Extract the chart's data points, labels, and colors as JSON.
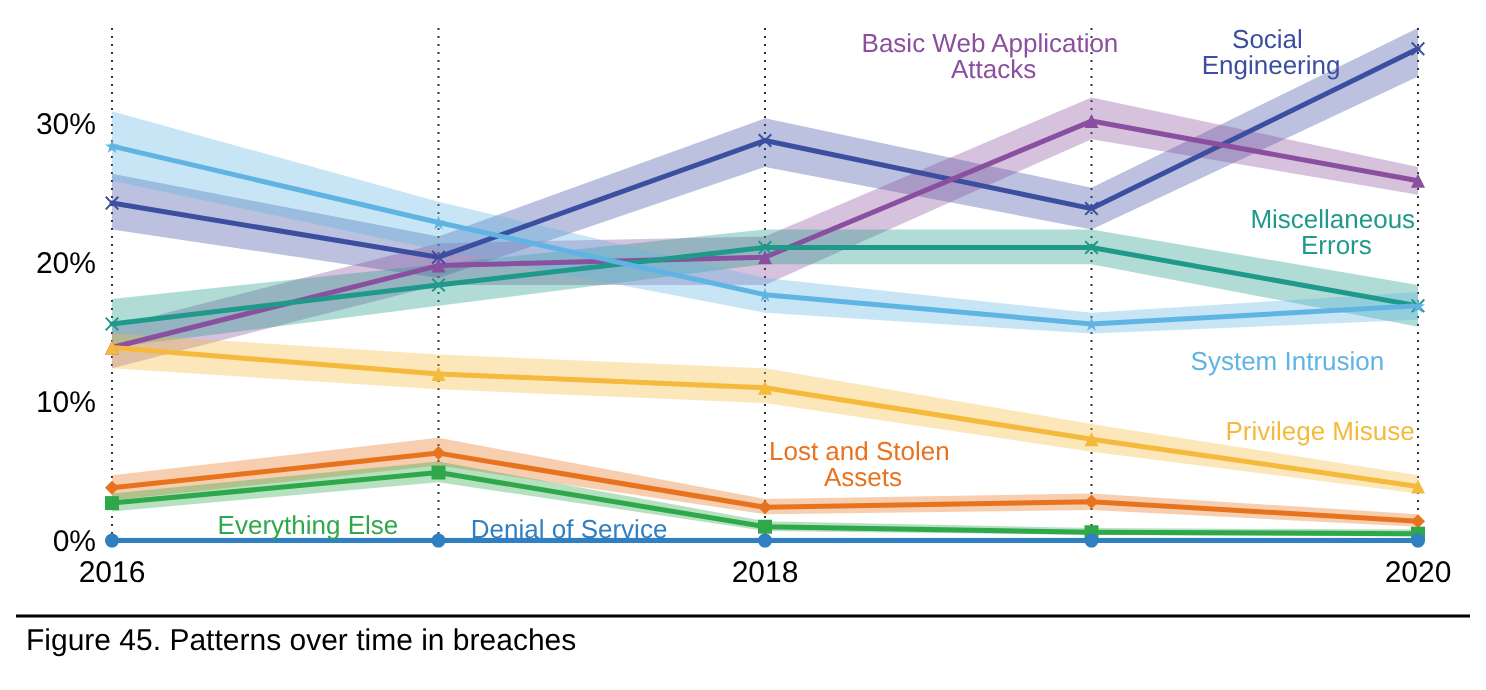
{
  "chart_data": {
    "type": "line",
    "title": "Figure 45. Patterns over time in breaches",
    "x": [
      2016,
      2017,
      2018,
      2019,
      2020
    ],
    "xlim": [
      2016,
      2020
    ],
    "xticks": [
      2016,
      {
        "value": 2017,
        "label": null
      },
      2018,
      {
        "value": 2019,
        "label": null
      },
      2020
    ],
    "ylim": [
      0,
      37
    ],
    "yticks": [
      {
        "value": 0,
        "label": "0%"
      },
      {
        "value": 10,
        "label": "10%"
      },
      {
        "value": 20,
        "label": "20%"
      },
      {
        "value": 30,
        "label": "30%"
      }
    ],
    "grid": "x",
    "legend": false,
    "series": [
      {
        "name": "Social Engineering",
        "color": "#3b4ea0",
        "marker": "cross",
        "values": [
          24.4,
          20.5,
          28.9,
          24,
          35.5
        ],
        "lower": [
          22.5,
          19,
          27,
          22.5,
          33.5
        ],
        "upper": [
          26.5,
          22,
          30.5,
          25.5,
          37
        ]
      },
      {
        "name": "Basic Web Application Attacks",
        "color": "#8a4f9e",
        "marker": "triangle",
        "values": [
          14,
          19.9,
          20.5,
          30.3,
          26
        ],
        "lower": [
          12.5,
          18.5,
          18.5,
          29,
          25
        ],
        "upper": [
          15.5,
          21.5,
          22,
          32,
          27
        ]
      },
      {
        "name": "Miscellaneous Errors",
        "color": "#1f9a8a",
        "marker": "cross",
        "values": [
          15.7,
          18.5,
          21.2,
          21.2,
          17
        ],
        "lower": [
          14,
          17,
          20,
          20,
          15.5
        ],
        "upper": [
          17.5,
          20,
          22.5,
          22.5,
          18.5
        ]
      },
      {
        "name": "System Intrusion",
        "color": "#5fb4e3",
        "marker": "star",
        "values": [
          28.5,
          23,
          17.8,
          15.7,
          17
        ],
        "lower": [
          26,
          21,
          16.5,
          15,
          16
        ],
        "upper": [
          31,
          24.5,
          19,
          16.5,
          18
        ]
      },
      {
        "name": "Privilege Misuse",
        "color": "#f5b93c",
        "marker": "triangle",
        "values": [
          14,
          12.1,
          11.1,
          7.4,
          4
        ],
        "lower": [
          12.5,
          11,
          10,
          6.5,
          3.5
        ],
        "upper": [
          15,
          13.5,
          12.5,
          8.5,
          4.8
        ]
      },
      {
        "name": "Lost and Stolen Assets",
        "color": "#e8731e",
        "marker": "diamond",
        "values": [
          3.9,
          6.4,
          2.5,
          2.9,
          1.5
        ],
        "lower": [
          3,
          5.5,
          2,
          2.3,
          1.1
        ],
        "upper": [
          4.8,
          7.5,
          3.1,
          3.5,
          2
        ]
      },
      {
        "name": "Everything Else",
        "color": "#2ea84a",
        "marker": "square",
        "values": [
          2.8,
          5,
          1.1,
          0.7,
          0.6
        ],
        "lower": [
          2.2,
          4.3,
          0.8,
          0.5,
          0.4
        ],
        "upper": [
          3.5,
          5.8,
          1.5,
          1,
          0.9
        ]
      },
      {
        "name": "Denial of Service",
        "color": "#2f7fc1",
        "marker": "circle",
        "values": [
          0.1,
          0.1,
          0.1,
          0.1,
          0.1
        ],
        "lower": [
          0,
          0,
          0,
          0,
          0
        ],
        "upper": [
          0.3,
          0.3,
          0.3,
          0.3,
          0.3
        ]
      }
    ]
  }
}
